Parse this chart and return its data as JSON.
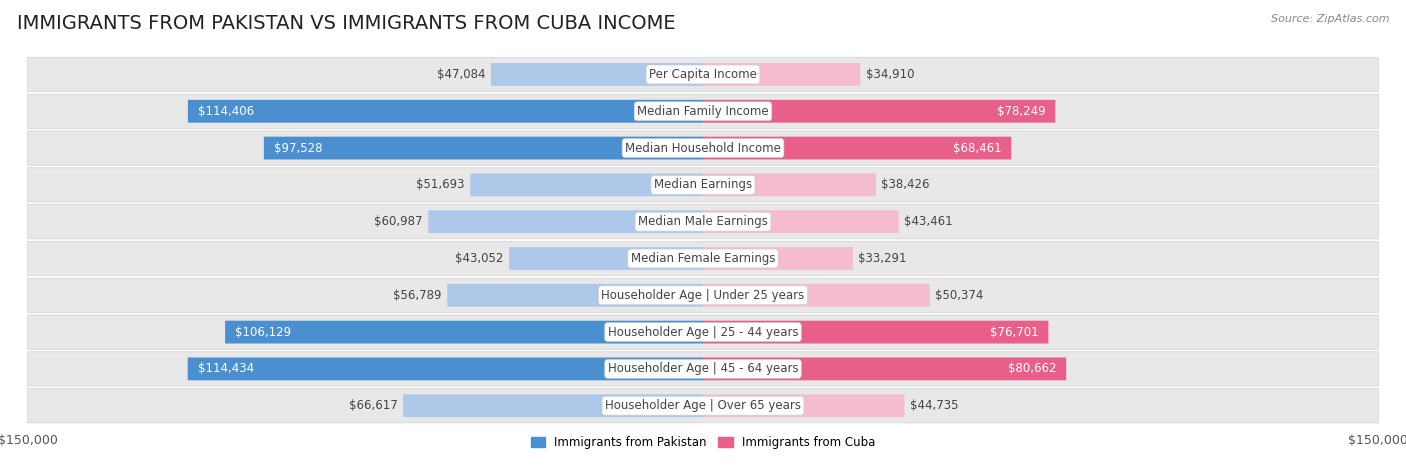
{
  "title": "IMMIGRANTS FROM PAKISTAN VS IMMIGRANTS FROM CUBA INCOME",
  "source": "Source: ZipAtlas.com",
  "categories": [
    "Per Capita Income",
    "Median Family Income",
    "Median Household Income",
    "Median Earnings",
    "Median Male Earnings",
    "Median Female Earnings",
    "Householder Age | Under 25 years",
    "Householder Age | 25 - 44 years",
    "Householder Age | 45 - 64 years",
    "Householder Age | Over 65 years"
  ],
  "pakistan_values": [
    47084,
    114406,
    97528,
    51693,
    60987,
    43052,
    56789,
    106129,
    114434,
    66617
  ],
  "cuba_values": [
    34910,
    78249,
    68461,
    38426,
    43461,
    33291,
    50374,
    76701,
    80662,
    44735
  ],
  "pakistan_labels": [
    "$47,084",
    "$114,406",
    "$97,528",
    "$51,693",
    "$60,987",
    "$43,052",
    "$56,789",
    "$106,129",
    "$114,434",
    "$66,617"
  ],
  "cuba_labels": [
    "$34,910",
    "$78,249",
    "$68,461",
    "$38,426",
    "$43,461",
    "$33,291",
    "$50,374",
    "$76,701",
    "$80,662",
    "$44,735"
  ],
  "pakistan_color_light": "#adc8e8",
  "pakistan_color_dark": "#4a90d0",
  "cuba_color_light": "#f5bcd0",
  "cuba_color_dark": "#e8608a",
  "max_value": 150000,
  "legend_pakistan": "Immigrants from Pakistan",
  "legend_cuba": "Immigrants from Cuba",
  "background_color": "#ffffff",
  "row_bg_color": "#e8e8e8",
  "row_border_color": "#d0d0d0",
  "title_fontsize": 14,
  "label_fontsize": 8.5,
  "axis_label_fontsize": 9,
  "pak_dark_threshold": 75000,
  "cuba_dark_threshold": 60000
}
